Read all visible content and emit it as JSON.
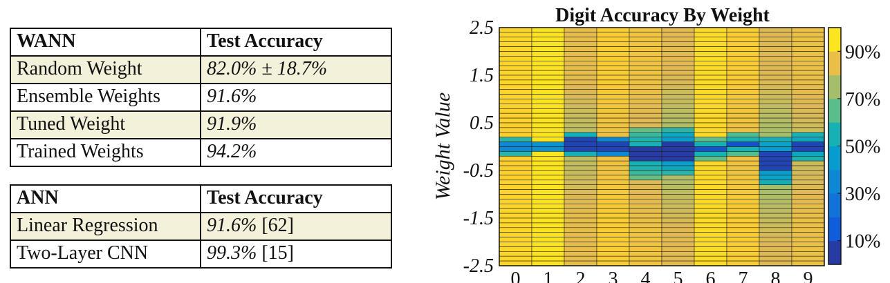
{
  "wann_table": {
    "header": [
      "WANN",
      "Test Accuracy"
    ],
    "rows": [
      {
        "method": "Random Weight",
        "accuracy": "82.0% ± 18.7%",
        "ref": ""
      },
      {
        "method": "Ensemble Weights",
        "accuracy": "91.6%",
        "ref": ""
      },
      {
        "method": "Tuned Weight",
        "accuracy": "91.9%",
        "ref": ""
      },
      {
        "method": "Trained Weights",
        "accuracy": "94.2%",
        "ref": ""
      }
    ]
  },
  "ann_table": {
    "header": [
      "ANN",
      "Test Accuracy"
    ],
    "rows": [
      {
        "method": "Linear Regression",
        "accuracy": "91.6%",
        "ref": "[62]"
      },
      {
        "method": "Two-Layer CNN",
        "accuracy": "99.3%",
        "ref": "[15]"
      }
    ]
  },
  "chart_data": {
    "type": "heatmap",
    "title": "Digit Accuracy By Weight",
    "xlabel": "",
    "ylabel": "Weight Value",
    "x_categories": [
      "0",
      "1",
      "2",
      "3",
      "4",
      "5",
      "6",
      "7",
      "8",
      "9"
    ],
    "y_tick_labels": [
      "2.5",
      "1.5",
      "0.5",
      "-0.5",
      "-1.5",
      "-2.5"
    ],
    "y_ticks": [
      2.5,
      1.5,
      0.5,
      -0.5,
      -1.5,
      -2.5
    ],
    "y_range": [
      -2.5,
      2.5
    ],
    "colorbar": {
      "ticks": [
        "10%",
        "30%",
        "50%",
        "70%",
        "90%"
      ],
      "tick_values": [
        10,
        30,
        50,
        70,
        90
      ],
      "range": [
        0,
        100
      ]
    },
    "weight_rows": {
      "description_y": "rows of weight values from 2.5 (top) to -2.5 (bottom)",
      "count": 50,
      "columns": [
        {
          "digit": "0",
          "base": 90,
          "dip_center": 0.0,
          "dip_width": 0.25,
          "dip_min": 55,
          "core_min": 35
        },
        {
          "digit": "1",
          "base": 95,
          "dip_center": 0.0,
          "dip_width": 0.12,
          "dip_min": 40,
          "core_min": 18
        },
        {
          "digit": "2",
          "base": 78,
          "dip_center": 0.05,
          "dip_width": 0.3,
          "dip_min": 50,
          "core_min": 8
        },
        {
          "digit": "3",
          "base": 86,
          "dip_center": 0.0,
          "dip_width": 0.25,
          "dip_min": 30,
          "core_min": 8
        },
        {
          "digit": "4",
          "base": 82,
          "dip_center": -0.15,
          "dip_width": 0.55,
          "dip_min": 55,
          "core_min": 5
        },
        {
          "digit": "5",
          "base": 76,
          "dip_center": -0.1,
          "dip_width": 0.5,
          "dip_min": 45,
          "core_min": 5
        },
        {
          "digit": "6",
          "base": 92,
          "dip_center": -0.05,
          "dip_width": 0.25,
          "dip_min": 55,
          "core_min": 12
        },
        {
          "digit": "7",
          "base": 86,
          "dip_center": 0.05,
          "dip_width": 0.25,
          "dip_min": 55,
          "core_min": 12
        },
        {
          "digit": "8",
          "base": 75,
          "dip_center": -0.3,
          "dip_width": 0.55,
          "dip_min": 45,
          "core_min": 8
        },
        {
          "digit": "9",
          "base": 80,
          "dip_center": 0.0,
          "dip_width": 0.35,
          "dip_min": 50,
          "core_min": 8
        }
      ]
    }
  }
}
